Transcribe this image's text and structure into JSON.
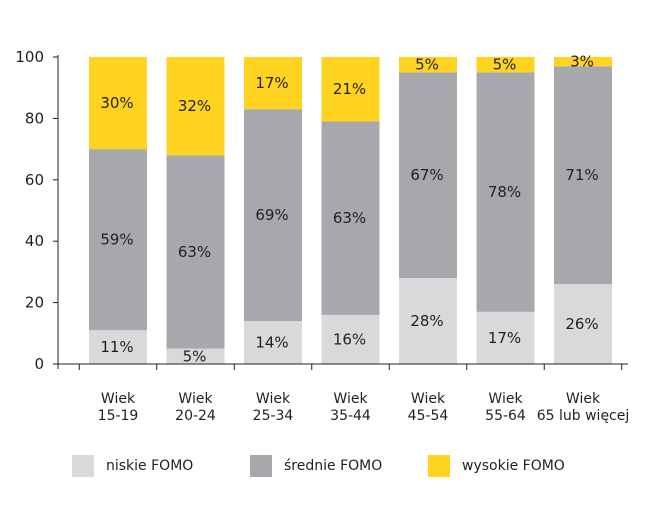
{
  "chart_data": {
    "type": "bar",
    "stacked": true,
    "title": "",
    "xlabel": "",
    "ylabel": "",
    "ylim": [
      0,
      100
    ],
    "yticks": [
      0,
      20,
      40,
      60,
      80,
      100
    ],
    "categories": [
      [
        "Wiek",
        "15-19"
      ],
      [
        "Wiek",
        "20-24"
      ],
      [
        "Wiek",
        "25-34"
      ],
      [
        "Wiek",
        "35-44"
      ],
      [
        "Wiek",
        "45-54"
      ],
      [
        "Wiek",
        "55-64"
      ],
      [
        "Wiek",
        "65 lub więcej"
      ]
    ],
    "series": [
      {
        "name": "niskie FOMO",
        "color": "#d9d9db",
        "values": [
          11,
          5,
          14,
          16,
          28,
          17,
          26
        ],
        "labels": [
          "11%",
          "5%",
          "14%",
          "16%",
          "28%",
          "17%",
          "26%"
        ]
      },
      {
        "name": "średnie FOMO",
        "color": "#a7a8ab",
        "values": [
          59,
          63,
          69,
          63,
          67,
          78,
          71
        ],
        "labels": [
          "59%",
          "63%",
          "69%",
          "63%",
          "67%",
          "78%",
          "71%"
        ]
      },
      {
        "name": "wysokie FOMO",
        "color": "#ffd320",
        "values": [
          30,
          32,
          17,
          21,
          5,
          5,
          3
        ],
        "labels": [
          "30%",
          "32%",
          "17%",
          "21%",
          "5%",
          "5%",
          "3%"
        ]
      }
    ],
    "legend_position": "bottom",
    "grid": false
  }
}
